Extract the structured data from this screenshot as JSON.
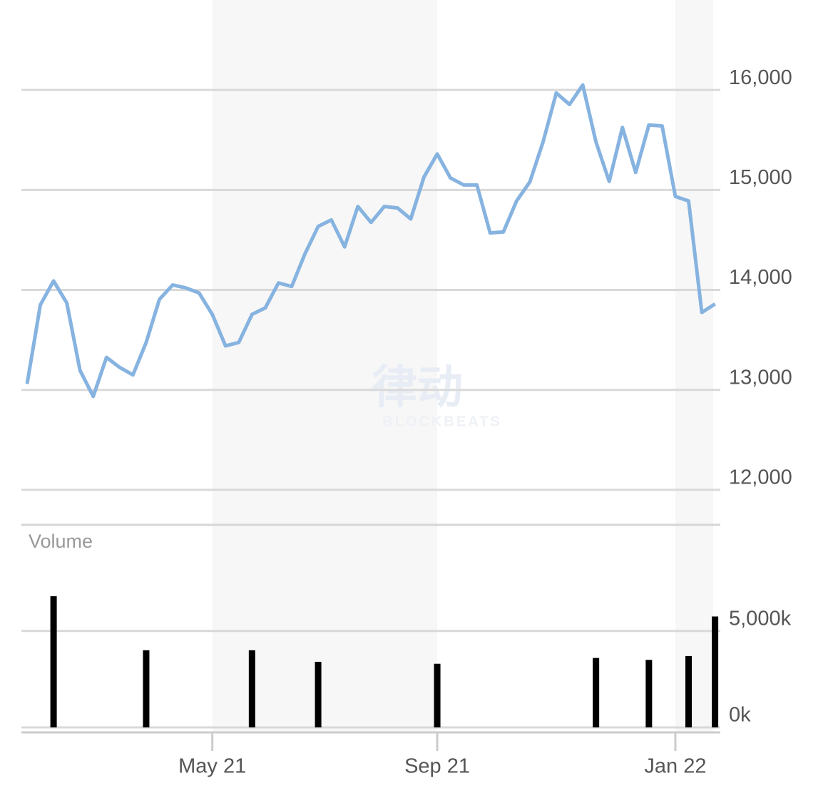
{
  "chart_data": [
    {
      "type": "line",
      "color": "#86b3e0",
      "watermark": "律动",
      "watermark_sub": "BLOCKBEATS",
      "values": [
        13060,
        13850,
        14090,
        13870,
        13195,
        12935,
        13325,
        13225,
        13150,
        13475,
        13905,
        14050,
        14020,
        13970,
        13755,
        13440,
        13475,
        13755,
        13820,
        14070,
        14035,
        14360,
        14635,
        14700,
        14430,
        14835,
        14675,
        14835,
        14820,
        14710,
        15130,
        15360,
        15120,
        15050,
        15050,
        14570,
        14580,
        14890,
        15080,
        15480,
        15970,
        15855,
        16050,
        15480,
        15085,
        15625,
        15175,
        15650,
        15640,
        14935,
        14890,
        13775,
        13860
      ],
      "ylim": [
        11650,
        16900
      ],
      "yticks": [
        {
          "value": 12000,
          "label": "12,000"
        },
        {
          "value": 13000,
          "label": "13,000"
        },
        {
          "value": 14000,
          "label": "14,000"
        },
        {
          "value": 15000,
          "label": "15,000"
        },
        {
          "value": 16000,
          "label": "16,000"
        }
      ],
      "grid": true
    },
    {
      "type": "bar",
      "title": "Volume",
      "color": "#000000",
      "categories": [
        null,
        null,
        null,
        null,
        null,
        null,
        null,
        null,
        null,
        null,
        null,
        null,
        null,
        null,
        "May 21",
        null,
        null,
        null,
        null,
        null,
        null,
        null,
        null,
        null,
        null,
        null,
        null,
        null,
        null,
        null,
        null,
        "Sep 21",
        null,
        null,
        null,
        null,
        null,
        null,
        null,
        null,
        null,
        null,
        null,
        null,
        null,
        null,
        null,
        null,
        null,
        "Jan 22",
        null,
        null,
        null
      ],
      "values": [
        null,
        null,
        6800,
        null,
        null,
        null,
        null,
        null,
        null,
        4000,
        null,
        null,
        null,
        null,
        null,
        null,
        null,
        4000,
        null,
        null,
        null,
        null,
        3400,
        null,
        null,
        null,
        null,
        null,
        null,
        null,
        null,
        3300,
        null,
        null,
        null,
        null,
        null,
        null,
        null,
        null,
        null,
        null,
        null,
        3600,
        null,
        null,
        null,
        3500,
        null,
        null,
        3700,
        null,
        5750
      ],
      "ylim": [
        0,
        10500
      ],
      "yticks": [
        {
          "value": 0,
          "label": "0k"
        },
        {
          "value": 5000,
          "label": "5,000k"
        }
      ],
      "grid": true
    }
  ]
}
